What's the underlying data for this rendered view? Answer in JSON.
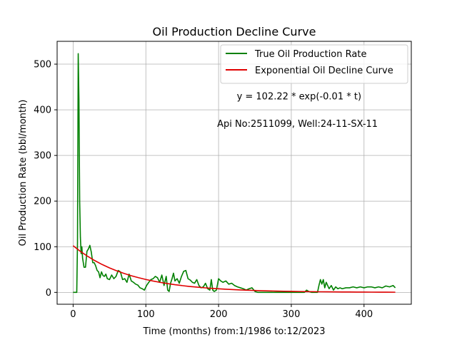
{
  "chart_data": {
    "type": "line",
    "title": "Oil Production Decline Curve",
    "xlabel": "Time (months) from:1/1986 to:12/2023",
    "ylabel": "Oil Production Rate (bbl/month)",
    "xlim": [
      -22,
      465
    ],
    "ylim": [
      -26,
      550
    ],
    "xticks": [
      0,
      100,
      200,
      300,
      400
    ],
    "yticks": [
      0,
      100,
      200,
      300,
      400,
      500
    ],
    "grid": true,
    "legend_position": "top-right",
    "annotations": [
      {
        "text": "y = 102.22 * exp(-0.01 * t)",
        "x": 225,
        "y": 430
      },
      {
        "text": "Api No:2511099, Well:24-11-SX-11",
        "x": 198,
        "y": 370
      }
    ],
    "series": [
      {
        "name": "True Oil Production Rate",
        "color": "#008000",
        "x": [
          0,
          5,
          6,
          7,
          8,
          9,
          10,
          11,
          12,
          13,
          15,
          17,
          19,
          21,
          23,
          25,
          27,
          29,
          31,
          33,
          35,
          37,
          39,
          41,
          43,
          45,
          47,
          50,
          53,
          56,
          59,
          62,
          65,
          68,
          71,
          74,
          77,
          80,
          83,
          86,
          89,
          92,
          95,
          98,
          101,
          104,
          107,
          110,
          113,
          116,
          119,
          122,
          125,
          128,
          130,
          132,
          134,
          136,
          138,
          140,
          143,
          146,
          149,
          152,
          155,
          158,
          161,
          164,
          167,
          170,
          173,
          176,
          179,
          182,
          185,
          188,
          190,
          192,
          194,
          197,
          200,
          203,
          206,
          210,
          214,
          218,
          222,
          226,
          230,
          234,
          238,
          242,
          246,
          250,
          254,
          258,
          262,
          266,
          270,
          274,
          278,
          282,
          286,
          290,
          294,
          298,
          302,
          306,
          310,
          314,
          318,
          321,
          324,
          328,
          332,
          336,
          338,
          340,
          342,
          344,
          346,
          348,
          350,
          352,
          355,
          358,
          361,
          364,
          367,
          370,
          375,
          380,
          385,
          390,
          395,
          400,
          405,
          410,
          415,
          420,
          425,
          430,
          435,
          440,
          443
        ],
        "values": [
          0,
          0,
          110,
          523,
          420,
          200,
          120,
          85,
          100,
          75,
          55,
          55,
          90,
          95,
          103,
          88,
          65,
          65,
          58,
          48,
          45,
          32,
          45,
          37,
          35,
          40,
          30,
          28,
          38,
          30,
          35,
          48,
          45,
          28,
          30,
          22,
          40,
          25,
          22,
          18,
          16,
          10,
          8,
          5,
          15,
          22,
          28,
          30,
          35,
          32,
          22,
          38,
          15,
          35,
          5,
          2,
          20,
          30,
          42,
          25,
          30,
          20,
          35,
          46,
          48,
          30,
          27,
          22,
          20,
          28,
          15,
          10,
          12,
          20,
          8,
          5,
          28,
          5,
          2,
          5,
          30,
          25,
          22,
          25,
          18,
          20,
          15,
          12,
          10,
          8,
          5,
          8,
          10,
          2,
          0,
          0,
          0,
          0,
          0,
          0,
          0,
          0,
          0,
          0,
          0,
          0,
          0,
          0,
          0,
          0,
          0,
          5,
          2,
          0,
          0,
          0,
          15,
          28,
          18,
          28,
          10,
          22,
          15,
          8,
          15,
          5,
          12,
          8,
          10,
          8,
          10,
          10,
          12,
          10,
          12,
          10,
          12,
          12,
          10,
          12,
          10,
          14,
          12,
          15,
          10
        ]
      },
      {
        "name": "Exponential Oil Decline Curve",
        "color": "#e00000",
        "x": [
          0,
          10,
          20,
          30,
          40,
          50,
          60,
          70,
          80,
          90,
          100,
          110,
          120,
          130,
          140,
          150,
          160,
          170,
          180,
          190,
          200,
          210,
          220,
          230,
          240,
          250,
          260,
          270,
          280,
          290,
          300,
          310,
          320,
          330,
          340,
          350,
          360,
          370,
          380,
          390,
          400,
          410,
          420,
          430,
          443
        ],
        "values": [
          102.22,
          89.8,
          79.0,
          69.4,
          61.0,
          53.6,
          47.2,
          41.5,
          36.5,
          32.1,
          28.2,
          24.8,
          21.8,
          19.2,
          16.8,
          14.8,
          13.0,
          11.5,
          10.1,
          8.9,
          7.8,
          6.9,
          6.1,
          5.3,
          4.7,
          4.1,
          3.6,
          3.2,
          2.8,
          2.5,
          2.2,
          1.9,
          1.7,
          1.5,
          1.3,
          1.15,
          1.0,
          0.9,
          0.8,
          0.7,
          0.6,
          0.53,
          0.47,
          0.42,
          0.35
        ]
      }
    ]
  }
}
